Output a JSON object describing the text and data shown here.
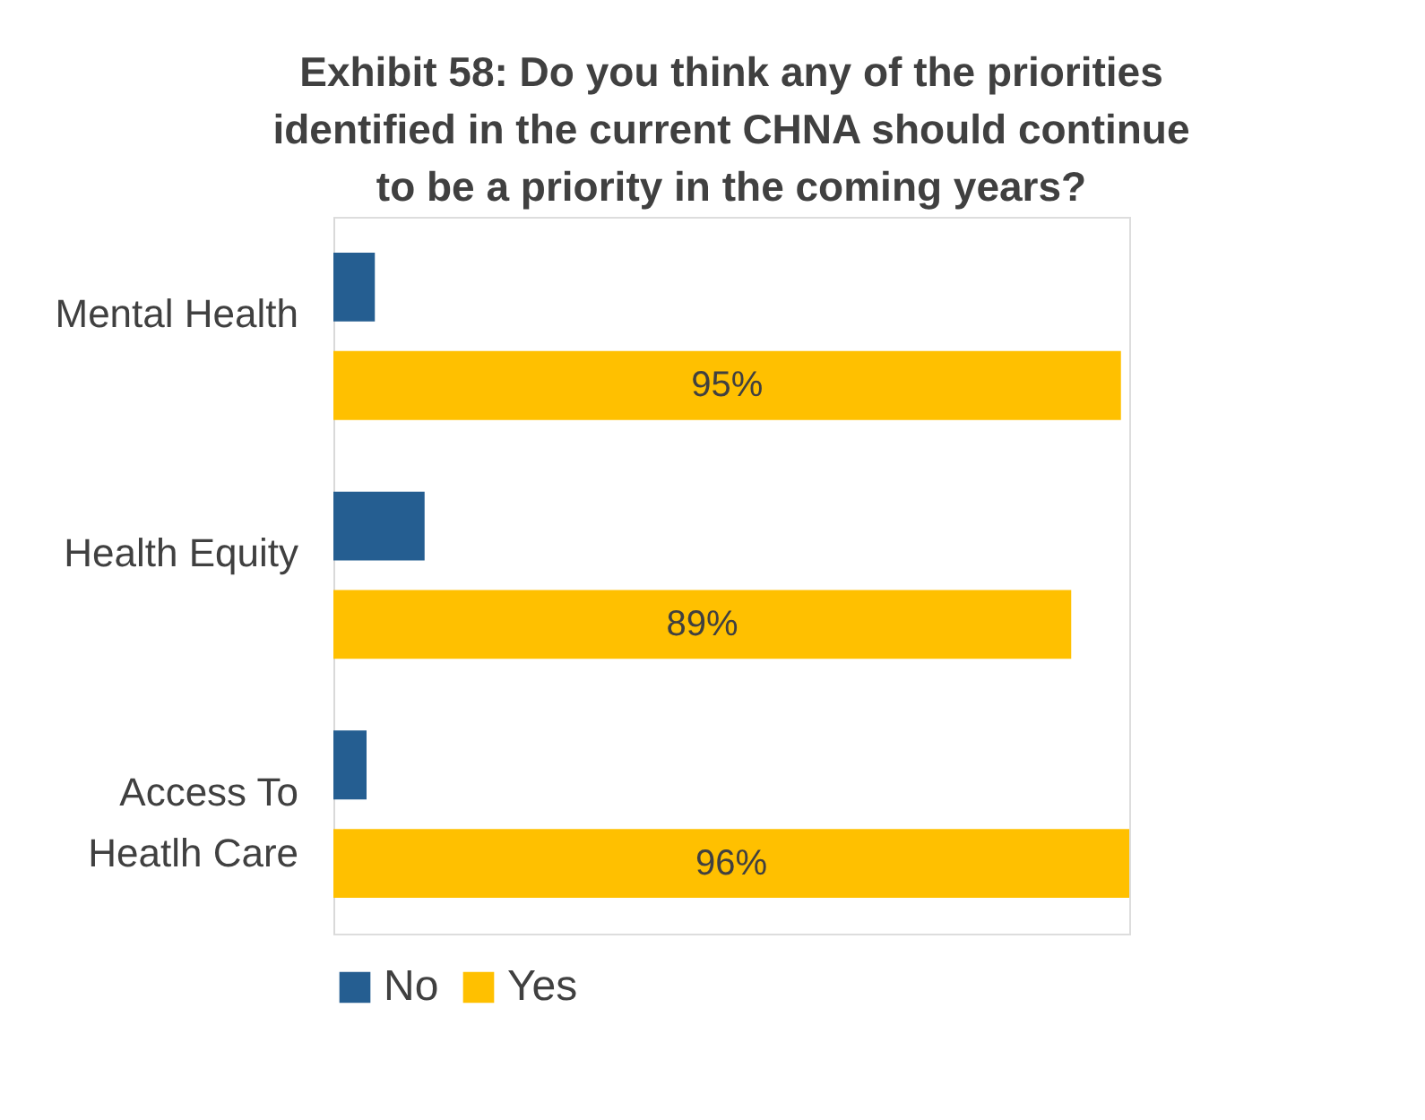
{
  "chart_data": {
    "type": "bar",
    "orientation": "horizontal",
    "title": "Exhibit 58: Do you think any of the priorities identified in the current CHNA should continue to be a priority in the coming years?",
    "categories": [
      "Mental Health",
      "Health Equity",
      "Access To\nHeatlh Care"
    ],
    "series": [
      {
        "name": "No",
        "color": "#255e91",
        "values": [
          5,
          11,
          4
        ]
      },
      {
        "name": "Yes",
        "color": "#ffc000",
        "values": [
          95,
          89,
          96
        ],
        "value_labels": [
          "95%",
          "89%",
          "96%"
        ]
      }
    ],
    "grid": false,
    "legend": "bottom"
  }
}
